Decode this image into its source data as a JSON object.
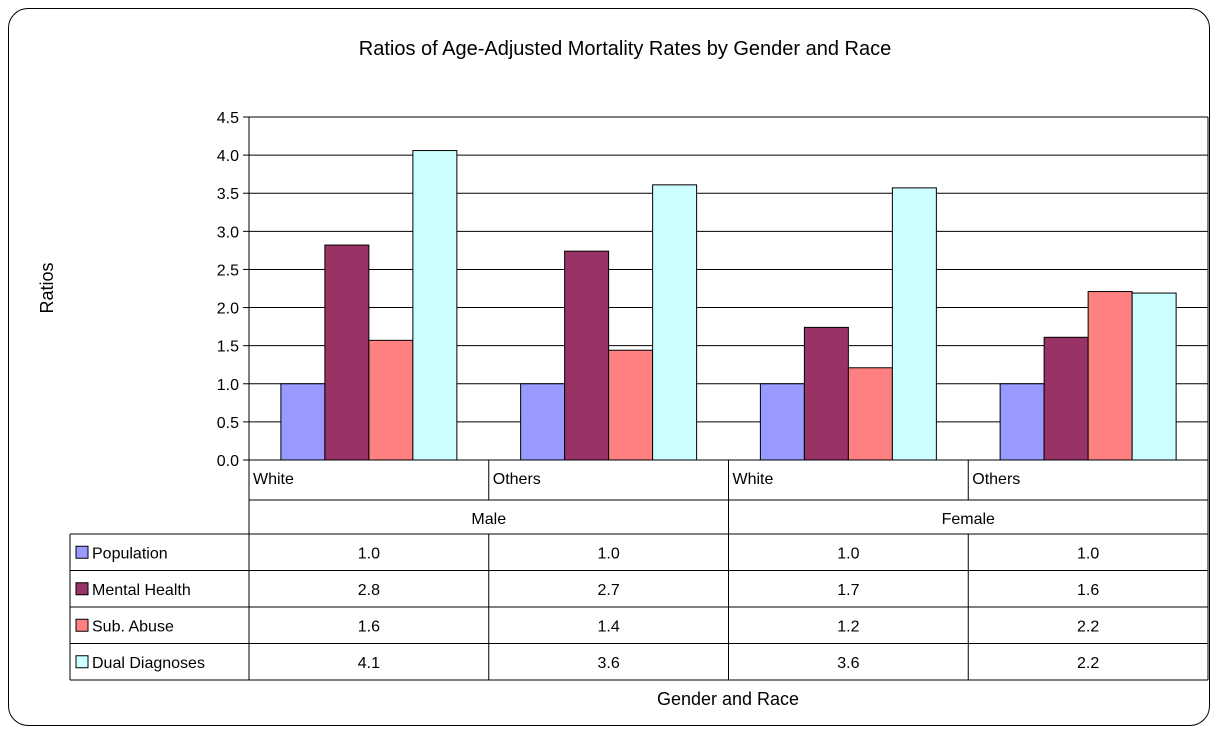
{
  "chart_data": {
    "type": "bar",
    "title": "Ratios of Age-Adjusted Mortality Rates by Gender and Race",
    "xlabel": "Gender and Race",
    "ylabel": "Ratios",
    "ylim": [
      0,
      4.5
    ],
    "yticks": [
      "0.0",
      "0.5",
      "1.0",
      "1.5",
      "2.0",
      "2.5",
      "3.0",
      "3.5",
      "4.0",
      "4.5"
    ],
    "grid": true,
    "legend": "data-table-left",
    "categories": [
      "White",
      "Others",
      "White",
      "Others"
    ],
    "groups": [
      {
        "label": "Male",
        "span": 2
      },
      {
        "label": "Female",
        "span": 2
      }
    ],
    "series": [
      {
        "name": "Population",
        "color": "#9999ff",
        "values": [
          1.0,
          1.0,
          1.0,
          1.0
        ],
        "labels": [
          "1.0",
          "1.0",
          "1.0",
          "1.0"
        ]
      },
      {
        "name": "Mental Health",
        "color": "#993366",
        "values": [
          2.82,
          2.74,
          1.74,
          1.61
        ],
        "labels": [
          "2.8",
          "2.7",
          "1.7",
          "1.6"
        ]
      },
      {
        "name": "Sub. Abuse",
        "color": "#ff8080",
        "values": [
          1.57,
          1.44,
          1.21,
          2.21
        ],
        "labels": [
          "1.6",
          "1.4",
          "1.2",
          "2.2"
        ]
      },
      {
        "name": "Dual Diagnoses",
        "color": "#ccffff",
        "values": [
          4.06,
          3.61,
          3.57,
          2.19
        ],
        "labels": [
          "4.1",
          "3.6",
          "3.6",
          "2.2"
        ]
      }
    ]
  }
}
